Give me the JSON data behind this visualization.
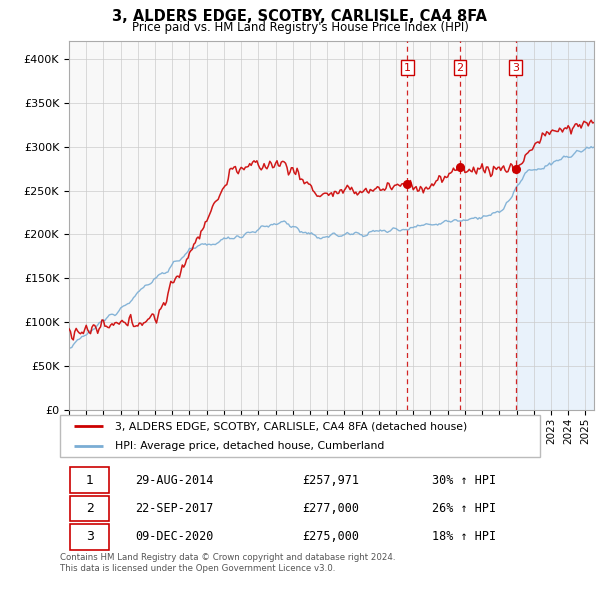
{
  "title": "3, ALDERS EDGE, SCOTBY, CARLISLE, CA4 8FA",
  "subtitle": "Price paid vs. HM Land Registry's House Price Index (HPI)",
  "property_label": "3, ALDERS EDGE, SCOTBY, CARLISLE, CA4 8FA (detached house)",
  "hpi_label": "HPI: Average price, detached house, Cumberland",
  "transactions": [
    {
      "num": 1,
      "date": "29-AUG-2014",
      "price": "£257,971",
      "change": "30%",
      "dir": "↑",
      "ref": "HPI",
      "year": 2014.66
    },
    {
      "num": 2,
      "date": "22-SEP-2017",
      "price": "£277,000",
      "change": "26%",
      "dir": "↑",
      "ref": "HPI",
      "year": 2017.72
    },
    {
      "num": 3,
      "date": "09-DEC-2020",
      "price": "£275,000",
      "change": "18%",
      "dir": "↑",
      "ref": "HPI",
      "year": 2020.94
    }
  ],
  "footer1": "Contains HM Land Registry data © Crown copyright and database right 2024.",
  "footer2": "This data is licensed under the Open Government Licence v3.0.",
  "red_color": "#cc0000",
  "blue_color": "#7aadd4",
  "vline_color": "#cc0000",
  "shade_color": "#ddeeff",
  "ylim": [
    0,
    420000
  ],
  "yticks": [
    0,
    50000,
    100000,
    150000,
    200000,
    250000,
    300000,
    350000,
    400000
  ],
  "xstart": 1995,
  "xend": 2025.5
}
